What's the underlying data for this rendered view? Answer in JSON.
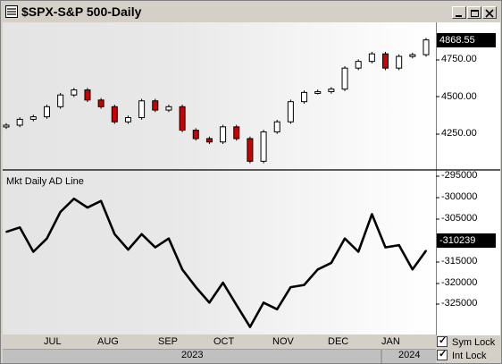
{
  "window": {
    "title": "$SPX-S&P 500-Daily"
  },
  "price_panel": {
    "last_value": "4868.55",
    "y_ticks": [
      "4750.00",
      "4500.00",
      "4250.00"
    ]
  },
  "ad_panel": {
    "label": "Mkt Daily AD Line",
    "last_value": "-310239",
    "y_ticks": [
      "-295000",
      "-300000",
      "-305000",
      "-315000",
      "-320000",
      "-325000"
    ]
  },
  "x_axis": {
    "months": [
      "JUL",
      "AUG",
      "SEP",
      "OCT",
      "NOV",
      "DEC",
      "JAN"
    ],
    "years": [
      "2023",
      "2024"
    ]
  },
  "controls": {
    "sym_lock": {
      "label": "Sym Lock",
      "checked": true
    },
    "int_lock": {
      "label": "Int Lock",
      "checked": true
    }
  },
  "colors": {
    "down_candle": "#cc0000",
    "up_candle": "#ffffff",
    "line": "#000000"
  },
  "chart_data": [
    {
      "type": "candlestick",
      "title": "$SPX-S&P 500-Daily",
      "ylim": [
        4120,
        4930
      ],
      "x": [
        "2023-06-20",
        "2023-06-27",
        "2023-07-05",
        "2023-07-12",
        "2023-07-19",
        "2023-07-26",
        "2023-08-02",
        "2023-08-09",
        "2023-08-16",
        "2023-08-23",
        "2023-08-30",
        "2023-09-06",
        "2023-09-13",
        "2023-09-20",
        "2023-09-27",
        "2023-10-04",
        "2023-10-11",
        "2023-10-18",
        "2023-10-25",
        "2023-11-01",
        "2023-11-08",
        "2023-11-15",
        "2023-11-22",
        "2023-11-29",
        "2023-12-06",
        "2023-12-13",
        "2023-12-20",
        "2023-12-27",
        "2024-01-03",
        "2024-01-10",
        "2024-01-17",
        "2024-01-24"
      ],
      "close": [
        4360,
        4395,
        4410,
        4470,
        4540,
        4570,
        4510,
        4470,
        4380,
        4405,
        4505,
        4450,
        4470,
        4330,
        4280,
        4260,
        4350,
        4280,
        4145,
        4320,
        4380,
        4500,
        4555,
        4560,
        4575,
        4700,
        4740,
        4785,
        4700,
        4770,
        4780,
        4868
      ]
    },
    {
      "type": "line",
      "title": "Mkt Daily AD Line",
      "ylim": [
        -329000,
        -293000
      ],
      "x": [
        "2023-06-20",
        "2023-06-27",
        "2023-07-05",
        "2023-07-12",
        "2023-07-19",
        "2023-07-26",
        "2023-08-02",
        "2023-08-09",
        "2023-08-16",
        "2023-08-23",
        "2023-08-30",
        "2023-09-06",
        "2023-09-13",
        "2023-09-20",
        "2023-09-27",
        "2023-10-04",
        "2023-10-11",
        "2023-10-18",
        "2023-10-25",
        "2023-11-01",
        "2023-11-08",
        "2023-11-15",
        "2023-11-22",
        "2023-11-29",
        "2023-12-06",
        "2023-12-13",
        "2023-12-20",
        "2023-12-27",
        "2024-01-03",
        "2024-01-10",
        "2024-01-17",
        "2024-01-24"
      ],
      "values": [
        -306000,
        -305000,
        -310500,
        -307500,
        -301500,
        -298500,
        -300500,
        -299000,
        -306500,
        -310000,
        -306500,
        -309500,
        -307500,
        -314500,
        -318500,
        -322000,
        -317500,
        -322500,
        -327500,
        -322000,
        -323500,
        -318500,
        -318000,
        -314500,
        -313000,
        -307500,
        -310500,
        -302000,
        -309500,
        -309000,
        -314500,
        -310239
      ]
    }
  ]
}
